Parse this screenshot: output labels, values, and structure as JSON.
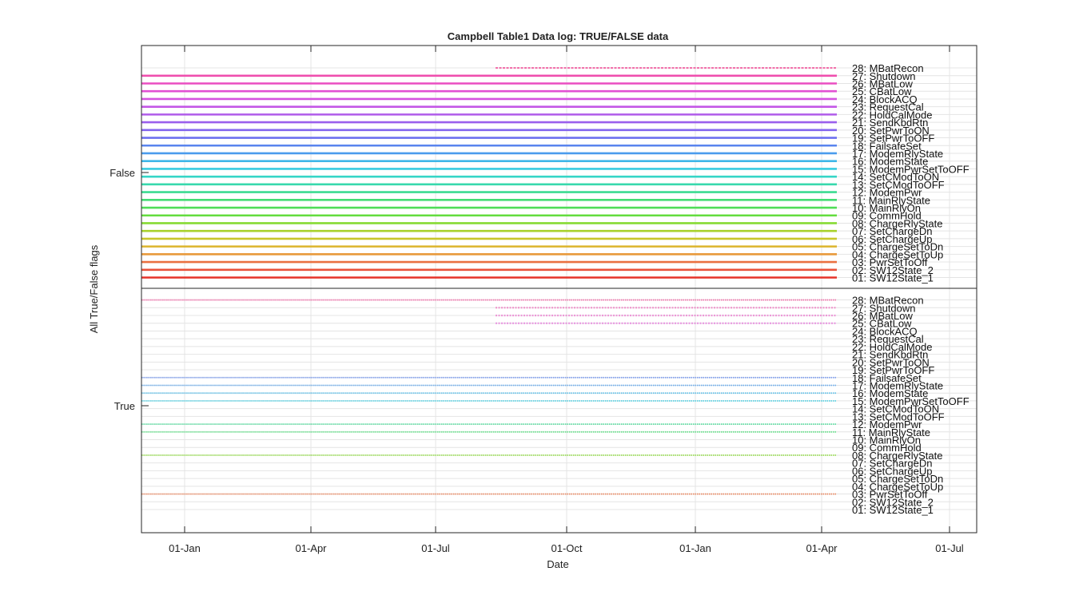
{
  "chart_data": {
    "type": "scatter",
    "title": "Campbell Table1 Data log: TRUE/FALSE data",
    "xlabel": "Date",
    "ylabel": "All True/False flags",
    "x_ticks": [
      "01-Jan",
      "01-Apr",
      "01-Jul",
      "01-Oct",
      "01-Jan",
      "01-Apr",
      "01-Jul"
    ],
    "y_ticks": [
      "False",
      "True"
    ],
    "grid": true,
    "x_range": [
      "Dec (year 1)",
      "Jul (year 2)"
    ],
    "data_range": [
      "Dec (year 1)",
      "Apr (year 2)"
    ],
    "flags": [
      "01: SW12State_1",
      "02: SW12State_2",
      "03: PwrSetToOff",
      "04: ChargeSetToUp",
      "05: ChargeSetToDn",
      "06: SetChargeUp",
      "07: SetChargeDn",
      "08: ChargeRlyState",
      "09: CommHold",
      "10: MainRlyOn",
      "11: MainRlyState",
      "12: ModemPwr",
      "13: SetCModToOFF",
      "14: SetCModToON",
      "15: ModemPwrSetToOFF",
      "16: ModemState",
      "17: ModemRlyState",
      "18: FailsafeSet",
      "19: SetPwrToOFF",
      "20: SetPwrToON",
      "21: SendKbdRtn",
      "22: HoldCalMode",
      "23: RequestCal",
      "24: BlockACQ",
      "25: CBatLow",
      "26: MBatLow",
      "27: Shutdown",
      "28: MBatRecon"
    ],
    "colors": [
      "#e6332a",
      "#e8523a",
      "#ea7040",
      "#e89a3c",
      "#dcb52d",
      "#c9c72a",
      "#a8d22c",
      "#87db33",
      "#64dd3f",
      "#4fdd58",
      "#43dc73",
      "#3cdb91",
      "#38d9ad",
      "#36d6c7",
      "#39cce0",
      "#3fb6e8",
      "#4a9ced",
      "#5a84ee",
      "#6d70ef",
      "#8366ee",
      "#9a5fec",
      "#b05bea",
      "#c457e6",
      "#d553df",
      "#e150d3",
      "#ea4ec2",
      "#ef4fae",
      "#f2519a"
    ],
    "false_series": {
      "description_flags": "flags 1-27 FALSE continuously over data range",
      "series": [
        {
          "flag": 1,
          "ranges": [
            [
              "start",
              "end"
            ]
          ]
        },
        {
          "flag": 2,
          "ranges": [
            [
              "start",
              "end"
            ]
          ]
        },
        {
          "flag": 3,
          "ranges": [
            [
              "start",
              "end"
            ]
          ]
        },
        {
          "flag": 4,
          "ranges": [
            [
              "start",
              "end"
            ]
          ]
        },
        {
          "flag": 5,
          "ranges": [
            [
              "start",
              "end"
            ]
          ]
        },
        {
          "flag": 6,
          "ranges": [
            [
              "start",
              "end"
            ]
          ]
        },
        {
          "flag": 7,
          "ranges": [
            [
              "start",
              "end"
            ]
          ]
        },
        {
          "flag": 8,
          "ranges": [
            [
              "start",
              "end"
            ]
          ]
        },
        {
          "flag": 9,
          "ranges": [
            [
              "start",
              "end"
            ]
          ]
        },
        {
          "flag": 10,
          "ranges": [
            [
              "start",
              "end"
            ]
          ]
        },
        {
          "flag": 11,
          "ranges": [
            [
              "start",
              "end"
            ]
          ]
        },
        {
          "flag": 12,
          "ranges": [
            [
              "start",
              "end"
            ]
          ]
        },
        {
          "flag": 13,
          "ranges": [
            [
              "start",
              "end"
            ]
          ]
        },
        {
          "flag": 14,
          "ranges": [
            [
              "start",
              "end"
            ]
          ]
        },
        {
          "flag": 15,
          "ranges": [
            [
              "start",
              "end"
            ]
          ]
        },
        {
          "flag": 16,
          "ranges": [
            [
              "start",
              "end"
            ]
          ]
        },
        {
          "flag": 17,
          "ranges": [
            [
              "start",
              "end"
            ]
          ]
        },
        {
          "flag": 18,
          "ranges": [
            [
              "start",
              "end"
            ]
          ]
        },
        {
          "flag": 19,
          "ranges": [
            [
              "start",
              "end"
            ]
          ]
        },
        {
          "flag": 20,
          "ranges": [
            [
              "start",
              "end"
            ]
          ]
        },
        {
          "flag": 21,
          "ranges": [
            [
              "start",
              "end"
            ]
          ]
        },
        {
          "flag": 22,
          "ranges": [
            [
              "start",
              "end"
            ]
          ]
        },
        {
          "flag": 23,
          "ranges": [
            [
              "start",
              "end"
            ]
          ]
        },
        {
          "flag": 24,
          "ranges": [
            [
              "start",
              "end"
            ]
          ]
        },
        {
          "flag": 25,
          "ranges": [
            [
              "start",
              "end"
            ]
          ]
        },
        {
          "flag": 26,
          "ranges": [
            [
              "start",
              "end"
            ]
          ]
        },
        {
          "flag": 27,
          "ranges": [
            [
              "start",
              "end"
            ]
          ]
        },
        {
          "flag": 28,
          "ranges": [
            [
              "Aug",
              "end"
            ]
          ]
        }
      ]
    },
    "true_series": {
      "series": [
        {
          "flag": 3,
          "ranges": [
            [
              "start",
              "end"
            ]
          ]
        },
        {
          "flag": 8,
          "ranges": [
            [
              "start",
              "end"
            ]
          ]
        },
        {
          "flag": 11,
          "ranges": [
            [
              "start",
              "end"
            ]
          ]
        },
        {
          "flag": 12,
          "ranges": [
            [
              "start",
              "end"
            ]
          ]
        },
        {
          "flag": 15,
          "ranges": [
            [
              "start",
              "end"
            ]
          ]
        },
        {
          "flag": 16,
          "ranges": [
            [
              "start",
              "end"
            ]
          ]
        },
        {
          "flag": 17,
          "ranges": [
            [
              "start",
              "end"
            ]
          ]
        },
        {
          "flag": 18,
          "ranges": [
            [
              "start",
              "end"
            ]
          ]
        },
        {
          "flag": 25,
          "ranges": [
            [
              "Aug",
              "end"
            ]
          ]
        },
        {
          "flag": 26,
          "ranges": [
            [
              "Aug",
              "end"
            ]
          ]
        },
        {
          "flag": 27,
          "ranges": [
            [
              "Aug",
              "end"
            ]
          ]
        },
        {
          "flag": 28,
          "ranges": [
            [
              "start",
              "end"
            ]
          ]
        }
      ]
    }
  }
}
